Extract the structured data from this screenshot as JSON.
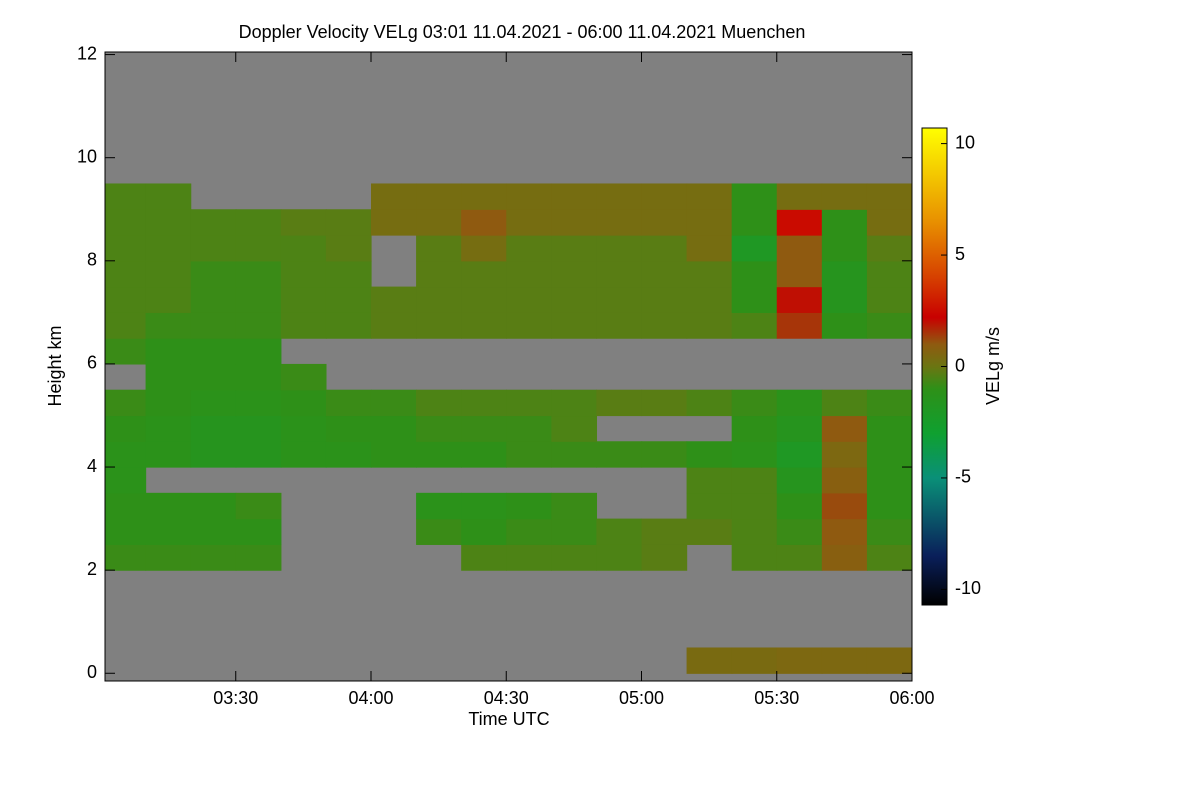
{
  "chart_data": {
    "type": "heatmap",
    "title": "Doppler Velocity VELg   03:01 11.04.2021 - 06:00 11.04.2021 Muenchen",
    "x_label": "Time UTC",
    "y_label": "Height km",
    "colorbar_label": "VELg m/s",
    "x": [
      180,
      190,
      200,
      210,
      220,
      230,
      240,
      250,
      260,
      270,
      280,
      290,
      300,
      310,
      320,
      330,
      340,
      350,
      360
    ],
    "y": [
      0,
      0.5,
      1,
      1.5,
      2,
      2.5,
      3,
      3.5,
      4,
      4.5,
      5,
      5.5,
      6,
      6.5,
      7,
      7.5,
      8,
      8.5,
      9,
      9.5,
      10,
      10.5,
      11,
      11.5,
      12
    ],
    "values": [
      [
        null,
        null,
        null,
        null,
        null,
        null,
        null,
        null,
        null,
        null,
        null,
        null,
        null,
        0.4,
        0.4,
        0.5,
        0.5,
        0.5
      ],
      [
        null,
        null,
        null,
        null,
        null,
        null,
        null,
        null,
        null,
        null,
        null,
        null,
        null,
        null,
        null,
        null,
        null,
        null
      ],
      [
        null,
        null,
        null,
        null,
        null,
        null,
        null,
        null,
        null,
        null,
        null,
        null,
        null,
        null,
        null,
        null,
        null,
        null
      ],
      [
        null,
        null,
        null,
        null,
        null,
        null,
        null,
        null,
        null,
        null,
        null,
        null,
        null,
        null,
        null,
        null,
        null,
        null
      ],
      [
        -0.8,
        -0.8,
        -0.8,
        -0.8,
        null,
        null,
        null,
        null,
        -0.5,
        -0.5,
        -0.5,
        -0.5,
        -0.3,
        null,
        -0.5,
        -0.5,
        0.8,
        -0.5
      ],
      [
        -1,
        -1,
        -1,
        -1,
        null,
        null,
        null,
        -0.8,
        -1,
        -0.8,
        -0.8,
        -0.5,
        -0.3,
        -0.3,
        -0.5,
        -0.8,
        1,
        -0.8
      ],
      [
        -1,
        -1,
        -1,
        -0.8,
        null,
        null,
        null,
        -1.2,
        -1.2,
        -1,
        -0.8,
        null,
        null,
        -0.5,
        -0.5,
        -1,
        1.2,
        -1
      ],
      [
        -1.2,
        null,
        null,
        null,
        null,
        null,
        null,
        null,
        null,
        null,
        null,
        null,
        null,
        -0.5,
        -0.5,
        -1.5,
        0.8,
        -1
      ],
      [
        -1.2,
        -1.2,
        -1.5,
        -1.5,
        -1.2,
        -1.2,
        -1,
        -1,
        -1,
        -0.8,
        -0.8,
        -0.8,
        -0.8,
        -1,
        -1.2,
        -2,
        0.5,
        -1
      ],
      [
        -1,
        -1.2,
        -1.5,
        -1.5,
        -1.2,
        -1,
        -1,
        -0.8,
        -0.8,
        -0.8,
        -0.5,
        null,
        null,
        null,
        -1,
        -1.5,
        1,
        -1
      ],
      [
        -0.8,
        -1,
        -1.2,
        -1.2,
        -1,
        -0.8,
        -0.8,
        -0.5,
        -0.5,
        -0.5,
        -0.5,
        -0.3,
        -0.3,
        -0.5,
        -0.8,
        -1.2,
        -0.5,
        -0.8
      ],
      [
        null,
        -1,
        -1,
        -1,
        -0.8,
        null,
        null,
        null,
        null,
        null,
        null,
        null,
        null,
        null,
        null,
        null,
        null,
        null
      ],
      [
        -0.8,
        -1,
        -1,
        -1,
        null,
        null,
        null,
        null,
        null,
        null,
        null,
        null,
        null,
        null,
        null,
        null,
        null,
        null
      ],
      [
        -0.5,
        -0.8,
        -0.8,
        -0.8,
        -0.5,
        -0.5,
        -0.3,
        -0.3,
        -0.3,
        -0.3,
        -0.3,
        -0.3,
        -0.3,
        -0.3,
        -0.5,
        1.5,
        -1,
        -0.8
      ],
      [
        -0.5,
        -0.5,
        -0.8,
        -0.8,
        -0.5,
        -0.5,
        -0.3,
        -0.3,
        -0.3,
        -0.3,
        -0.3,
        -0.3,
        -0.3,
        -0.3,
        -1,
        2,
        -1.5,
        -0.5
      ],
      [
        -0.5,
        -0.5,
        -0.8,
        -0.8,
        -0.5,
        -0.5,
        null,
        -0.3,
        -0.3,
        -0.3,
        -0.3,
        -0.3,
        -0.3,
        -0.3,
        -1,
        1,
        -1.5,
        -0.5
      ],
      [
        -0.5,
        -0.5,
        -0.5,
        -0.5,
        -0.5,
        -0.3,
        null,
        -0.3,
        0.3,
        -0.3,
        -0.3,
        -0.3,
        -0.3,
        0.3,
        -2,
        1,
        -1,
        -0.3
      ],
      [
        -0.5,
        -0.5,
        -0.5,
        -0.5,
        -0.3,
        -0.3,
        0.3,
        0.3,
        1,
        0.3,
        0.3,
        0.3,
        0.3,
        0.3,
        -1,
        2.5,
        -1,
        0.3
      ],
      [
        -0.5,
        -0.5,
        null,
        null,
        null,
        null,
        0.3,
        0.3,
        0.3,
        0.3,
        0.3,
        0.3,
        0.3,
        0.3,
        -1,
        0.3,
        0.3,
        0.3
      ],
      [
        null,
        null,
        null,
        null,
        null,
        null,
        null,
        null,
        null,
        null,
        null,
        null,
        null,
        null,
        null,
        null,
        null,
        null
      ],
      [
        null,
        null,
        null,
        null,
        null,
        null,
        null,
        null,
        null,
        null,
        null,
        null,
        null,
        null,
        null,
        null,
        null,
        null
      ],
      [
        null,
        null,
        null,
        null,
        null,
        null,
        null,
        null,
        null,
        null,
        null,
        null,
        null,
        null,
        null,
        null,
        null,
        null
      ],
      [
        null,
        null,
        null,
        null,
        null,
        null,
        null,
        null,
        null,
        null,
        null,
        null,
        null,
        null,
        null,
        null,
        null,
        null
      ],
      [
        null,
        null,
        null,
        null,
        null,
        null,
        null,
        null,
        null,
        null,
        null,
        null,
        null,
        null,
        null,
        null,
        null,
        null
      ]
    ],
    "xlim": [
      181,
      360
    ],
    "xticks": [
      {
        "value": 210,
        "label": "03:30"
      },
      {
        "value": 240,
        "label": "04:00"
      },
      {
        "value": 270,
        "label": "04:30"
      },
      {
        "value": 300,
        "label": "05:00"
      },
      {
        "value": 330,
        "label": "05:30"
      },
      {
        "value": 360,
        "label": "06:00"
      }
    ],
    "ylim": [
      -0.15,
      12.05
    ],
    "yticks": [
      0,
      2,
      4,
      6,
      8,
      10,
      12
    ],
    "clim": [
      -10.7,
      10.7
    ],
    "cticks": [
      -10,
      -5,
      0,
      5,
      10
    ],
    "missing_color": "#808080",
    "colorscale": [
      [
        -10.7,
        "#000000"
      ],
      [
        -8.5,
        "#0a1f5a"
      ],
      [
        -5,
        "#0a9078"
      ],
      [
        -3,
        "#0fa030"
      ],
      [
        -1,
        "#2e9018"
      ],
      [
        0,
        "#6b7512"
      ],
      [
        1,
        "#8f5a10"
      ],
      [
        2.2,
        "#c80000"
      ],
      [
        4,
        "#d64000"
      ],
      [
        6.5,
        "#e89000"
      ],
      [
        10.7,
        "#ffff00"
      ]
    ]
  }
}
